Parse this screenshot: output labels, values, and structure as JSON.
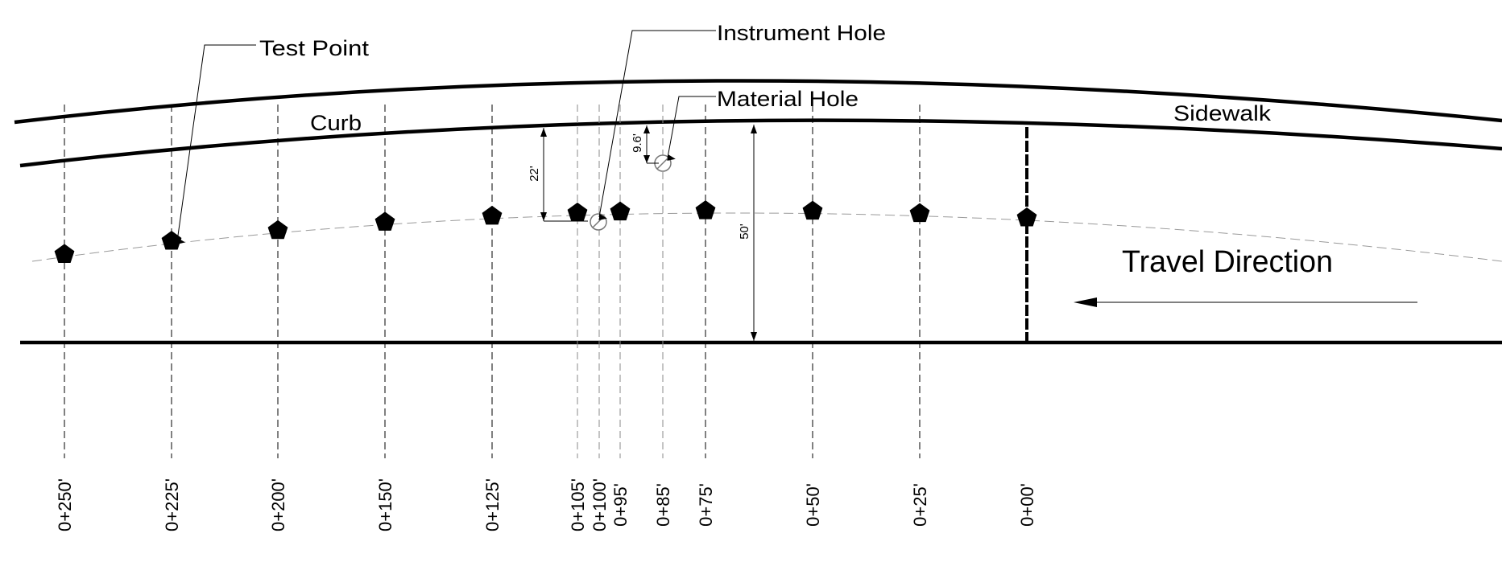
{
  "labels": {
    "test_point": "Test Point",
    "instrument_hole": "Instrument Hole",
    "material_hole": "Material Hole",
    "curb": "Curb",
    "sidewalk": "Sidewalk",
    "travel_direction": "Travel Direction"
  },
  "dimensions": {
    "offset_22": "22'",
    "offset_9_6": "9.6'",
    "offset_50": "50'"
  },
  "stations": [
    {
      "label": "0+250'",
      "has_test_point": true
    },
    {
      "label": "0+225'",
      "has_test_point": true
    },
    {
      "label": "0+200'",
      "has_test_point": true
    },
    {
      "label": "0+150'",
      "has_test_point": true
    },
    {
      "label": "0+125'",
      "has_test_point": true
    },
    {
      "label": "0+105'",
      "has_test_point": true
    },
    {
      "label": "0+100'",
      "has_test_point": false,
      "feature": "instrument-hole"
    },
    {
      "label": "0+95'",
      "has_test_point": true
    },
    {
      "label": "0+85'",
      "has_test_point": false,
      "feature": "material-hole"
    },
    {
      "label": "0+75'",
      "has_test_point": true
    },
    {
      "label": "0+50'",
      "has_test_point": true
    },
    {
      "label": "0+25'",
      "has_test_point": true
    },
    {
      "label": "0+00'",
      "has_test_point": true
    }
  ],
  "colors": {
    "line": "#000000",
    "centerline": "#9a9a9a",
    "background": "#ffffff"
  }
}
